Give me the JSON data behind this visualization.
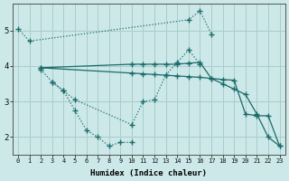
{
  "xlabel": "Humidex (Indice chaleur)",
  "bg_color": "#cce8e8",
  "grid_color": "#aacccc",
  "line_color": "#1a6b6b",
  "ylim": [
    1.5,
    5.75
  ],
  "xlim": [
    -0.5,
    23.5
  ],
  "yticks": [
    2,
    3,
    4,
    5
  ],
  "xticks": [
    0,
    1,
    2,
    3,
    4,
    5,
    6,
    7,
    8,
    9,
    10,
    11,
    12,
    13,
    14,
    15,
    16,
    17,
    18,
    19,
    20,
    21,
    22,
    23
  ],
  "lineA_x": [
    0,
    1,
    15,
    16,
    17
  ],
  "lineA_y": [
    5.05,
    4.7,
    5.3,
    5.55,
    4.9
  ],
  "lineB_x": [
    2,
    3,
    4,
    5,
    6,
    7,
    8,
    9,
    10
  ],
  "lineB_y": [
    3.9,
    3.55,
    3.3,
    2.75,
    2.2,
    2.0,
    1.75,
    1.85,
    1.85
  ],
  "lineC_x": [
    3,
    4,
    5,
    10,
    11,
    12,
    13,
    14,
    15,
    16
  ],
  "lineC_y": [
    3.55,
    3.3,
    3.05,
    2.35,
    3.0,
    3.05,
    3.75,
    4.1,
    4.45,
    4.05
  ],
  "lineD_x": [
    2,
    10,
    11,
    12,
    13,
    14,
    15,
    16,
    17,
    18,
    19,
    20,
    21,
    22,
    23
  ],
  "lineD_y": [
    3.95,
    4.05,
    4.05,
    4.05,
    4.05,
    4.05,
    4.08,
    4.1,
    3.65,
    3.62,
    3.6,
    2.65,
    2.6,
    2.6,
    1.75
  ],
  "lineE_x": [
    2,
    10,
    11,
    12,
    13,
    14,
    15,
    16,
    17,
    18,
    19,
    20,
    21,
    22,
    23
  ],
  "lineE_y": [
    3.95,
    3.8,
    3.78,
    3.76,
    3.74,
    3.72,
    3.7,
    3.68,
    3.65,
    3.5,
    3.35,
    3.2,
    2.65,
    2.0,
    1.75
  ]
}
